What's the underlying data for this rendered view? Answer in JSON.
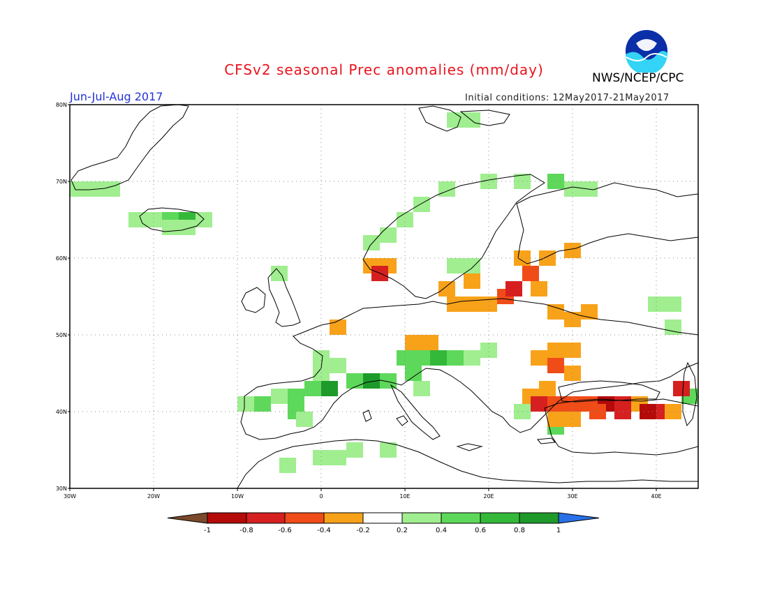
{
  "header": {
    "title": "CFSv2 seasonal Prec anomalies (mm/day)",
    "agency": "NWS/NCEP/CPC",
    "season": "Jun-Jul-Aug 2017",
    "initial_conditions": "Initial conditions: 12May2017-21May2017",
    "logo_text": "NOAA"
  },
  "axes": {
    "lat_labels": [
      "80N",
      "70N",
      "60N",
      "50N",
      "40N",
      "30N"
    ],
    "lon_labels": [
      "30W",
      "20W",
      "10W",
      "0",
      "10E",
      "20E",
      "30E",
      "40E"
    ]
  },
  "colorbar": {
    "tick_labels": [
      "-1",
      "-0.8",
      "-0.6",
      "-0.4",
      "-0.2",
      "0.2",
      "0.4",
      "0.6",
      "0.8",
      "1"
    ],
    "colors": [
      "#7a4a2b",
      "#b40a0a",
      "#d62020",
      "#f04c18",
      "#f8a21a",
      "#ffffff",
      "#a0ee90",
      "#5ed85a",
      "#34b83a",
      "#1e9a2a",
      "#2a70e8"
    ]
  },
  "anomaly_cells": [
    {
      "lon": -29,
      "lat": 69,
      "v": 0.3
    },
    {
      "lon": -27,
      "lat": 69,
      "v": 0.3
    },
    {
      "lon": -25,
      "lat": 69,
      "v": 0.3
    },
    {
      "lon": -22,
      "lat": 65,
      "v": 0.3
    },
    {
      "lon": -20,
      "lat": 65,
      "v": 0.3
    },
    {
      "lon": -18,
      "lat": 65,
      "v": 0.5
    },
    {
      "lon": -16,
      "lat": 65,
      "v": 0.7
    },
    {
      "lon": -14,
      "lat": 65,
      "v": 0.3
    },
    {
      "lon": -18,
      "lat": 64,
      "v": 0.3
    },
    {
      "lon": -16,
      "lat": 64,
      "v": 0.3
    },
    {
      "lon": -5,
      "lat": 58,
      "v": 0.3
    },
    {
      "lon": 6,
      "lat": 62,
      "v": 0.3
    },
    {
      "lon": 8,
      "lat": 63,
      "v": 0.3
    },
    {
      "lon": 10,
      "lat": 65,
      "v": 0.3
    },
    {
      "lon": 12,
      "lat": 67,
      "v": 0.3
    },
    {
      "lon": 15,
      "lat": 69,
      "v": 0.3
    },
    {
      "lon": 20,
      "lat": 70,
      "v": 0.3
    },
    {
      "lon": 24,
      "lat": 70,
      "v": 0.3
    },
    {
      "lon": 28,
      "lat": 70,
      "v": 0.4
    },
    {
      "lon": 32,
      "lat": 69,
      "v": 0.3
    },
    {
      "lon": 30,
      "lat": 69,
      "v": 0.3
    },
    {
      "lon": 16,
      "lat": 78,
      "v": 0.3
    },
    {
      "lon": 18,
      "lat": 78,
      "v": 0.3
    },
    {
      "lon": 16,
      "lat": 59,
      "v": 0.3
    },
    {
      "lon": 18,
      "lat": 59,
      "v": 0.3
    },
    {
      "lon": 0,
      "lat": 47,
      "v": 0.3
    },
    {
      "lon": 2,
      "lat": 46,
      "v": 0.3
    },
    {
      "lon": 0,
      "lat": 45,
      "v": 0.3
    },
    {
      "lon": 1,
      "lat": 43,
      "v": 0.9
    },
    {
      "lon": -1,
      "lat": 43,
      "v": 0.5
    },
    {
      "lon": -3,
      "lat": 42,
      "v": 0.4
    },
    {
      "lon": -5,
      "lat": 42,
      "v": 0.3
    },
    {
      "lon": -7,
      "lat": 41,
      "v": 0.5
    },
    {
      "lon": -9,
      "lat": 41,
      "v": 0.3
    },
    {
      "lon": -3,
      "lat": 40,
      "v": 0.4
    },
    {
      "lon": -2,
      "lat": 39,
      "v": 0.3
    },
    {
      "lon": 6,
      "lat": 44,
      "v": 0.9
    },
    {
      "lon": 4,
      "lat": 44,
      "v": 0.5
    },
    {
      "lon": 8,
      "lat": 44,
      "v": 0.5
    },
    {
      "lon": 10,
      "lat": 47,
      "v": 0.5
    },
    {
      "lon": 12,
      "lat": 47,
      "v": 0.4
    },
    {
      "lon": 14,
      "lat": 47,
      "v": 0.7
    },
    {
      "lon": 16,
      "lat": 47,
      "v": 0.4
    },
    {
      "lon": 18,
      "lat": 47,
      "v": 0.3
    },
    {
      "lon": 11,
      "lat": 45,
      "v": 0.4
    },
    {
      "lon": 12,
      "lat": 43,
      "v": 0.3
    },
    {
      "lon": 20,
      "lat": 48,
      "v": 0.3
    },
    {
      "lon": -4,
      "lat": 33,
      "v": 0.3
    },
    {
      "lon": 0,
      "lat": 34,
      "v": 0.3
    },
    {
      "lon": 2,
      "lat": 34,
      "v": 0.3
    },
    {
      "lon": 4,
      "lat": 35,
      "v": 0.3
    },
    {
      "lon": 8,
      "lat": 35,
      "v": 0.3
    },
    {
      "lon": 40,
      "lat": 54,
      "v": 0.3
    },
    {
      "lon": 42,
      "lat": 54,
      "v": 0.3
    },
    {
      "lon": 42,
      "lat": 51,
      "v": 0.3
    },
    {
      "lon": 44,
      "lat": 42,
      "v": 0.4
    },
    {
      "lon": 28,
      "lat": 38,
      "v": 0.4
    },
    {
      "lon": 24,
      "lat": 40,
      "v": 0.3
    },
    {
      "lon": 6,
      "lat": 59,
      "v": -0.3
    },
    {
      "lon": 8,
      "lat": 59,
      "v": -0.3
    },
    {
      "lon": 7,
      "lat": 58,
      "v": -0.7
    },
    {
      "lon": 18,
      "lat": 57,
      "v": -0.3
    },
    {
      "lon": 15,
      "lat": 56,
      "v": -0.3
    },
    {
      "lon": 16,
      "lat": 54,
      "v": -0.3
    },
    {
      "lon": 18,
      "lat": 54,
      "v": -0.3
    },
    {
      "lon": 20,
      "lat": 54,
      "v": -0.3
    },
    {
      "lon": 22,
      "lat": 55,
      "v": -0.5
    },
    {
      "lon": 23,
      "lat": 56,
      "v": -0.7
    },
    {
      "lon": 25,
      "lat": 58,
      "v": -0.5
    },
    {
      "lon": 24,
      "lat": 60,
      "v": -0.3
    },
    {
      "lon": 27,
      "lat": 60,
      "v": -0.3
    },
    {
      "lon": 30,
      "lat": 61,
      "v": -0.3
    },
    {
      "lon": 26,
      "lat": 56,
      "v": -0.3
    },
    {
      "lon": 28,
      "lat": 53,
      "v": -0.3
    },
    {
      "lon": 30,
      "lat": 52,
      "v": -0.3
    },
    {
      "lon": 32,
      "lat": 53,
      "v": -0.3
    },
    {
      "lon": 2,
      "lat": 51,
      "v": -0.3
    },
    {
      "lon": 11,
      "lat": 49,
      "v": -0.3
    },
    {
      "lon": 13,
      "lat": 49,
      "v": -0.3
    },
    {
      "lon": 26,
      "lat": 47,
      "v": -0.3
    },
    {
      "lon": 28,
      "lat": 48,
      "v": -0.3
    },
    {
      "lon": 30,
      "lat": 48,
      "v": -0.3
    },
    {
      "lon": 28,
      "lat": 46,
      "v": -0.5
    },
    {
      "lon": 30,
      "lat": 45,
      "v": -0.3
    },
    {
      "lon": 27,
      "lat": 43,
      "v": -0.3
    },
    {
      "lon": 25,
      "lat": 42,
      "v": -0.3
    },
    {
      "lon": 26,
      "lat": 41,
      "v": -0.7
    },
    {
      "lon": 28,
      "lat": 41,
      "v": -0.5
    },
    {
      "lon": 30,
      "lat": 41,
      "v": -0.4
    },
    {
      "lon": 32,
      "lat": 41,
      "v": -0.5
    },
    {
      "lon": 34,
      "lat": 41,
      "v": -0.8
    },
    {
      "lon": 36,
      "lat": 41,
      "v": -0.7
    },
    {
      "lon": 38,
      "lat": 41,
      "v": -0.3
    },
    {
      "lon": 33,
      "lat": 40,
      "v": -0.5
    },
    {
      "lon": 36,
      "lat": 40,
      "v": -0.6
    },
    {
      "lon": 39,
      "lat": 40,
      "v": -0.8
    },
    {
      "lon": 41,
      "lat": 40,
      "v": -0.6
    },
    {
      "lon": 42,
      "lat": 40,
      "v": -0.3
    },
    {
      "lon": 43,
      "lat": 43,
      "v": -0.6
    },
    {
      "lon": 28,
      "lat": 39,
      "v": -0.3
    },
    {
      "lon": 30,
      "lat": 39,
      "v": -0.3
    }
  ]
}
